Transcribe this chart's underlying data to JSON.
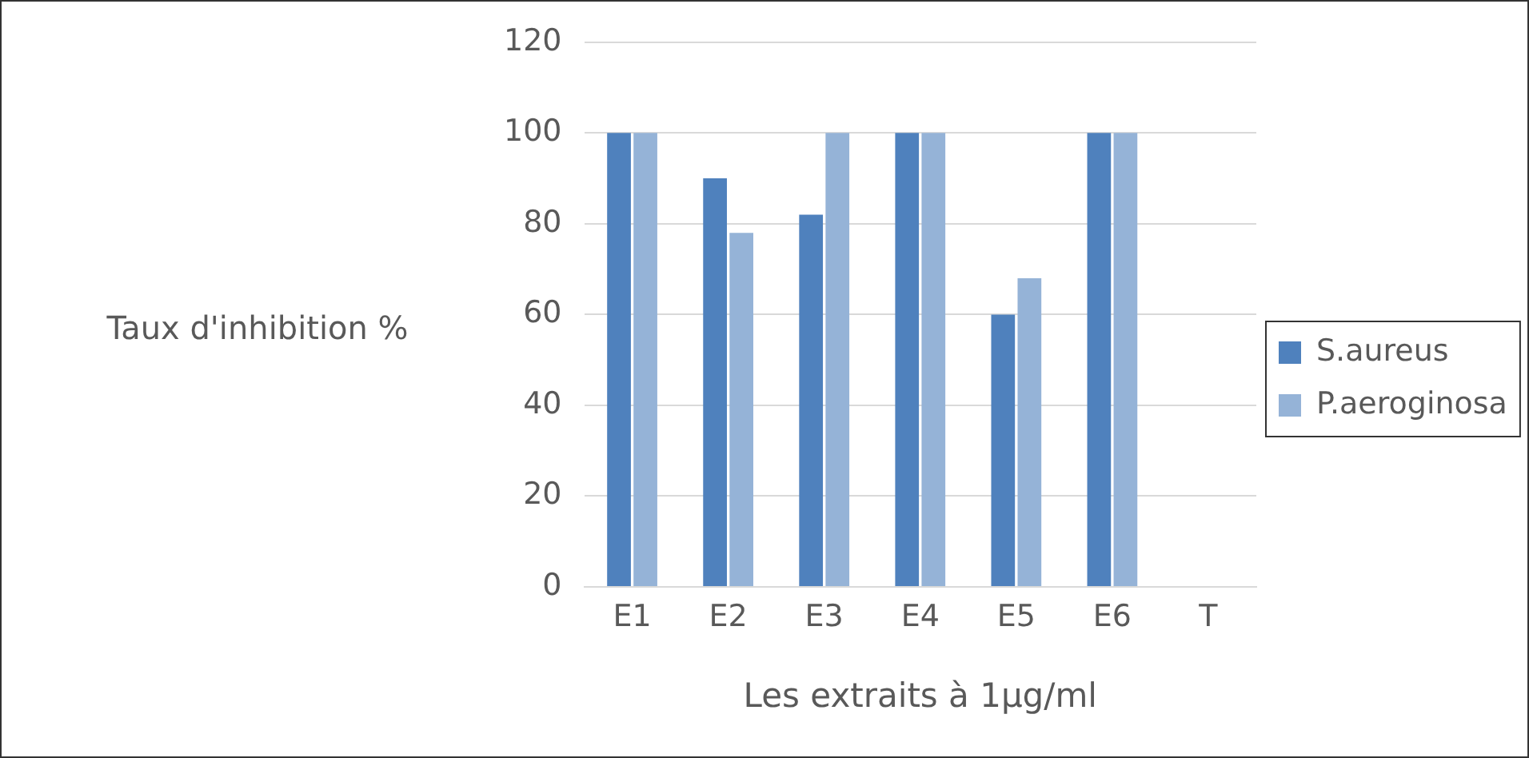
{
  "chart_data": {
    "type": "bar",
    "xlabel": "Les extraits à 1µg/ml",
    "ylabel": "Taux d'inhibition %",
    "categories": [
      "E1",
      "E2",
      "E3",
      "E4",
      "E5",
      "E6",
      "T"
    ],
    "series": [
      {
        "name": "S.aureus",
        "color": "#4f81bd",
        "values": [
          100,
          90,
          82,
          100,
          60,
          100,
          0
        ]
      },
      {
        "name": "P.aeroginosa",
        "color": "#95b3d7",
        "values": [
          100,
          78,
          100,
          100,
          68,
          100,
          0
        ]
      }
    ],
    "ylim": [
      0,
      120
    ],
    "yticks": [
      0,
      20,
      40,
      60,
      80,
      100,
      120
    ],
    "grid": "y",
    "legend": "right"
  }
}
